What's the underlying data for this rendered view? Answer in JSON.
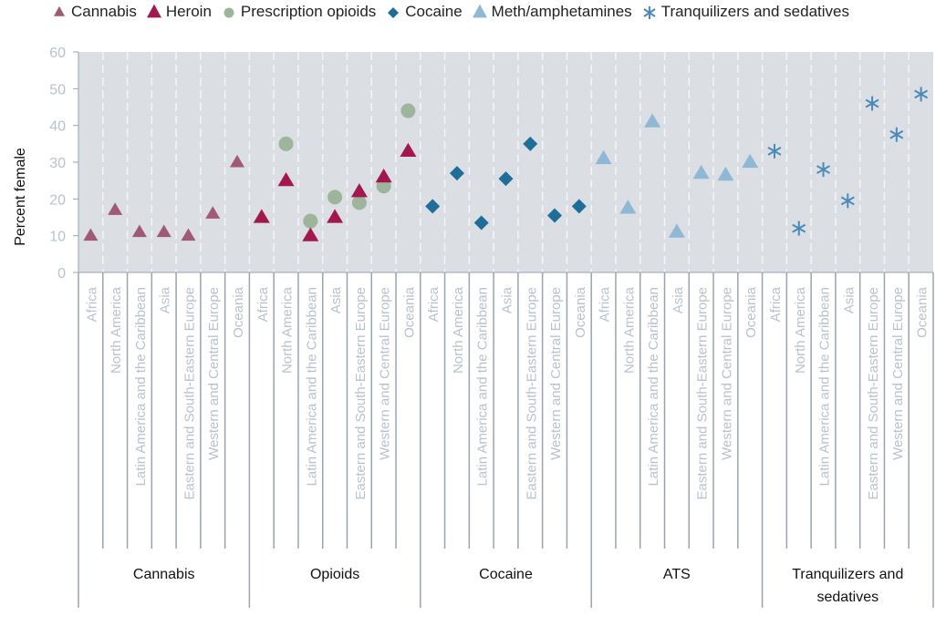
{
  "chart_data": {
    "type": "scatter",
    "title": "",
    "xlabel": "",
    "ylabel": "Percent female",
    "ylim": [
      0,
      60
    ],
    "yticks": [
      "0",
      "10",
      "20",
      "30",
      "40",
      "50",
      "60"
    ],
    "grid": "vertical dashed",
    "legend_position": "top",
    "regions": [
      "Africa",
      "North America",
      "Latin America and the Caribbean",
      "Asia",
      "Eastern and South-Eastern Europe",
      "Western and Central Europe",
      "Oceania"
    ],
    "groups": [
      "Cannabis",
      "Opioids",
      "Cocaine",
      "ATS",
      "Tranquilizers and sedatives"
    ],
    "series": [
      {
        "name": "Cannabis",
        "group": "Cannabis",
        "marker": "triangle-small",
        "color": "#a05a75",
        "values": [
          10,
          17,
          11,
          11,
          10,
          16,
          30
        ]
      },
      {
        "name": "Heroin",
        "group": "Opioids",
        "marker": "triangle",
        "color": "#a3174f",
        "values": [
          15,
          25,
          10,
          15,
          22,
          26,
          33
        ]
      },
      {
        "name": "Prescription opioids",
        "group": "Opioids",
        "marker": "circle",
        "color": "#9db59b",
        "values": [
          null,
          35,
          14,
          20.5,
          19,
          23.5,
          44
        ]
      },
      {
        "name": "Cocaine",
        "group": "Cocaine",
        "marker": "diamond",
        "color": "#1f6d99",
        "values": [
          18,
          27,
          13.5,
          25.5,
          35,
          15.5,
          18
        ]
      },
      {
        "name": "Meth/amphetamines",
        "group": "ATS",
        "marker": "triangle",
        "color": "#8fb8d4",
        "values": [
          31,
          17.5,
          41,
          11,
          27,
          26.5,
          30
        ]
      },
      {
        "name": "Tranquilizers and sedatives",
        "group": "Tranquilizers and sedatives",
        "marker": "asterisk",
        "color": "#4a8ab8",
        "values": [
          33,
          12,
          28,
          19.5,
          46,
          37.5,
          48.5
        ]
      }
    ]
  },
  "legend": [
    {
      "label": "Cannabis",
      "marker": "triangle-small",
      "color": "#a05a75"
    },
    {
      "label": "Heroin",
      "marker": "triangle",
      "color": "#a3174f"
    },
    {
      "label": "Prescription opioids",
      "marker": "circle",
      "color": "#9db59b"
    },
    {
      "label": "Cocaine",
      "marker": "diamond",
      "color": "#1f6d99"
    },
    {
      "label": "Meth/amphetamines",
      "marker": "triangle",
      "color": "#8fb8d4"
    },
    {
      "label": "Tranquilizers and sedatives",
      "marker": "asterisk",
      "color": "#4a8ab8"
    }
  ],
  "group_labels": [
    [
      "Cannabis"
    ],
    [
      "Opioids"
    ],
    [
      "Cocaine"
    ],
    [
      "ATS"
    ],
    [
      "Tranquilizers and",
      "sedatives"
    ]
  ]
}
